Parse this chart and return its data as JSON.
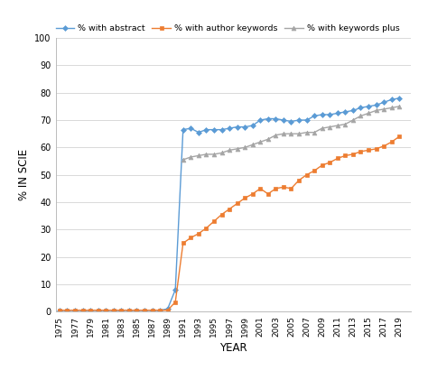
{
  "years": [
    1975,
    1976,
    1977,
    1978,
    1979,
    1980,
    1981,
    1982,
    1983,
    1984,
    1985,
    1986,
    1987,
    1988,
    1989,
    1990,
    1991,
    1992,
    1993,
    1994,
    1995,
    1996,
    1997,
    1998,
    1999,
    2000,
    2001,
    2002,
    2003,
    2004,
    2005,
    2006,
    2007,
    2008,
    2009,
    2010,
    2011,
    2012,
    2013,
    2014,
    2015,
    2016,
    2017,
    2018,
    2019
  ],
  "abstract": [
    0.5,
    0.5,
    0.5,
    0.5,
    0.5,
    0.5,
    0.5,
    0.5,
    0.5,
    0.5,
    0.5,
    0.5,
    0.5,
    0.5,
    1.0,
    8.0,
    66.5,
    67.0,
    65.5,
    66.5,
    66.5,
    66.5,
    67.0,
    67.5,
    67.5,
    68.0,
    70.0,
    70.5,
    70.5,
    70.0,
    69.5,
    70.0,
    70.0,
    71.5,
    72.0,
    72.0,
    72.5,
    73.0,
    73.5,
    74.5,
    75.0,
    75.5,
    76.5,
    77.5,
    78.0
  ],
  "author_keywords": [
    0.5,
    0.5,
    0.5,
    0.5,
    0.5,
    0.5,
    0.5,
    0.5,
    0.5,
    0.5,
    0.5,
    0.5,
    0.5,
    0.5,
    0.5,
    3.5,
    25.0,
    27.0,
    28.5,
    30.5,
    33.0,
    35.5,
    37.5,
    39.5,
    41.5,
    43.0,
    45.0,
    43.0,
    45.0,
    45.5,
    45.0,
    48.0,
    50.0,
    51.5,
    53.5,
    54.5,
    56.0,
    57.0,
    57.5,
    58.5,
    59.0,
    59.5,
    60.5,
    62.0,
    64.0
  ],
  "keywords_plus": [
    null,
    null,
    null,
    null,
    null,
    null,
    null,
    null,
    null,
    null,
    null,
    null,
    null,
    null,
    null,
    null,
    55.5,
    56.5,
    57.0,
    57.5,
    57.5,
    58.0,
    59.0,
    59.5,
    60.0,
    61.0,
    62.0,
    63.0,
    64.5,
    65.0,
    65.0,
    65.0,
    65.5,
    65.5,
    67.0,
    67.5,
    68.0,
    68.5,
    70.0,
    71.5,
    72.5,
    73.5,
    74.0,
    74.5,
    75.0
  ],
  "abstract_color": "#5b9bd5",
  "author_keywords_color": "#ed7d31",
  "keywords_plus_color": "#a5a5a5",
  "abstract_label": "% with abstract",
  "author_keywords_label": "% with author keywords",
  "keywords_plus_label": "% with keywords plus",
  "xlabel": "YEAR",
  "ylabel": "% IN SCIE",
  "ylim": [
    0,
    100
  ],
  "yticks": [
    0,
    10,
    20,
    30,
    40,
    50,
    60,
    70,
    80,
    90,
    100
  ],
  "background_color": "#ffffff",
  "grid_color": "#d9d9d9"
}
